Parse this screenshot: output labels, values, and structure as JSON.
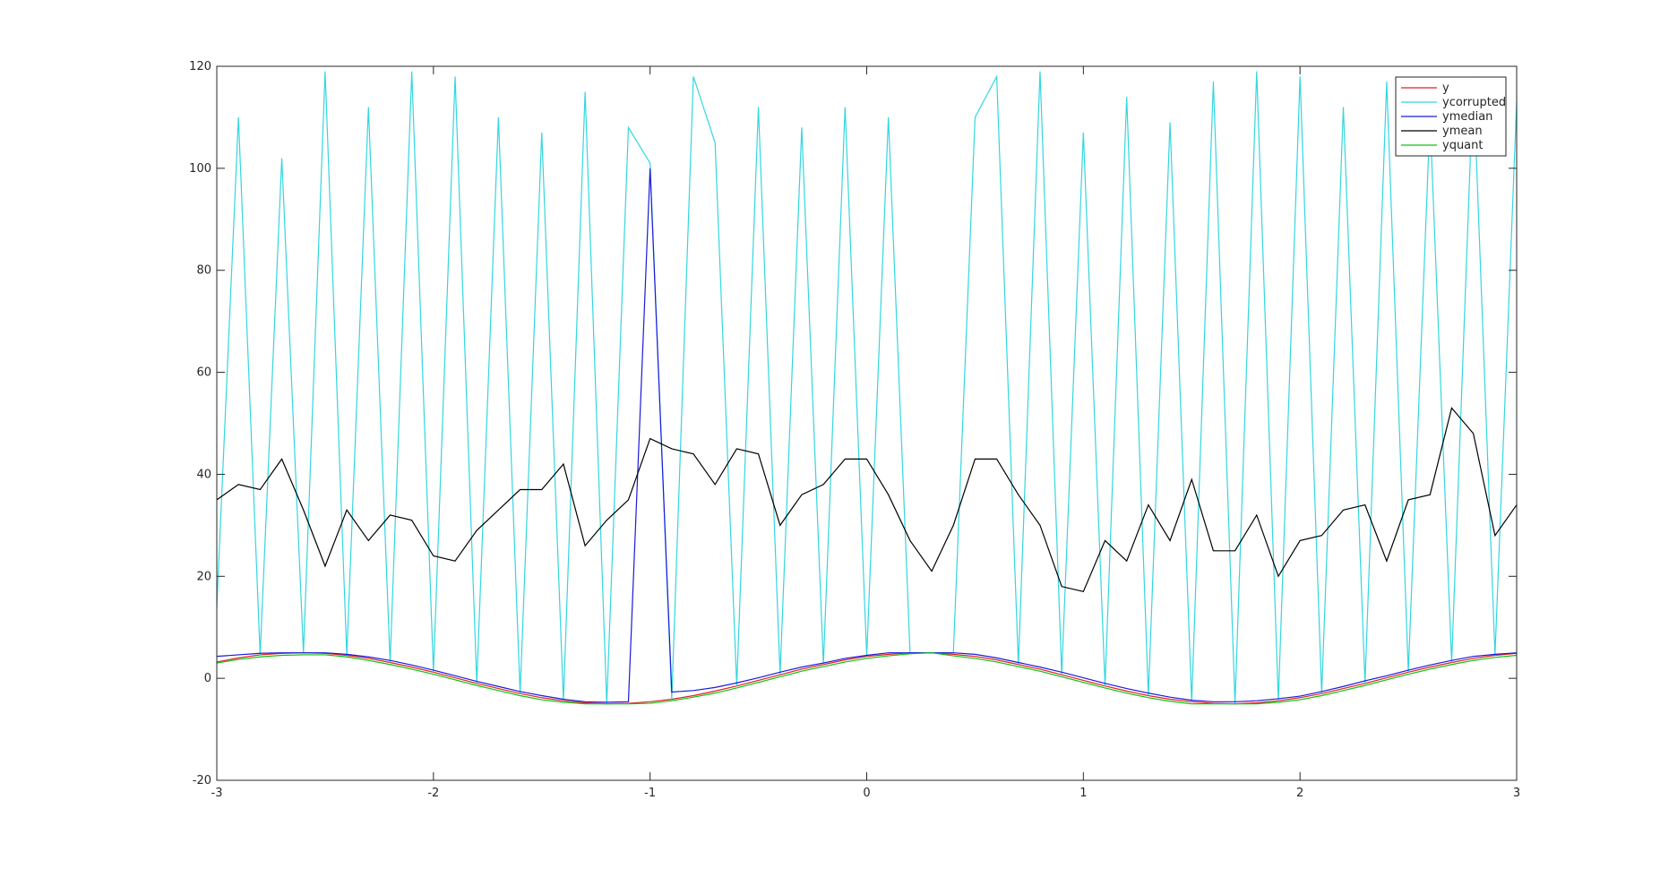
{
  "chart_data": {
    "type": "line",
    "x": [
      -3,
      -2.9,
      -2.8,
      -2.7,
      -2.6,
      -2.5,
      -2.4,
      -2.3,
      -2.2,
      -2.1,
      -2,
      -1.9,
      -1.8,
      -1.7,
      -1.6,
      -1.5,
      -1.4,
      -1.3,
      -1.2,
      -1.1,
      -1,
      -0.9,
      -0.8,
      -0.7,
      -0.6,
      -0.5,
      -0.4,
      -0.3,
      -0.2,
      -0.1,
      0,
      0.1,
      0.2,
      0.3,
      0.4,
      0.5,
      0.6,
      0.7,
      0.8,
      0.9,
      1,
      1.1,
      1.2,
      1.3,
      1.4,
      1.5,
      1.6,
      1.7,
      1.8,
      1.9,
      2,
      2.1,
      2.2,
      2.3,
      2.4,
      2.5,
      2.6,
      2.7,
      2.8,
      2.9,
      3
    ],
    "series": [
      {
        "name": "y",
        "color": "#e02020",
        "values": [
          3.2,
          4.0,
          4.6,
          4.9,
          5.0,
          4.9,
          4.5,
          3.9,
          3.1,
          2.2,
          1.2,
          0.1,
          -1.0,
          -2.0,
          -3.0,
          -3.8,
          -4.4,
          -4.8,
          -5.0,
          -4.9,
          -4.6,
          -4.1,
          -3.4,
          -2.5,
          -1.5,
          -0.4,
          0.7,
          1.8,
          2.7,
          3.6,
          4.3,
          4.7,
          5.0,
          5.0,
          4.7,
          4.3,
          3.6,
          2.7,
          1.8,
          0.7,
          -0.4,
          -1.5,
          -2.5,
          -3.4,
          -4.1,
          -4.6,
          -4.9,
          -5.0,
          -4.8,
          -4.4,
          -3.8,
          -3.0,
          -2.0,
          -1.0,
          0.1,
          1.2,
          2.2,
          3.1,
          3.9,
          4.5,
          4.9
        ]
      },
      {
        "name": "ycorrupted",
        "color": "#33d6e0",
        "values": [
          14,
          110,
          4.6,
          102,
          5,
          119,
          4.5,
          112,
          3.1,
          119,
          1.2,
          118,
          -1,
          110,
          -3,
          107,
          -4.4,
          115,
          -5,
          108,
          101,
          -4.1,
          118,
          105,
          -1.5,
          112,
          0.7,
          108,
          2.7,
          112,
          4.3,
          110,
          5,
          5,
          5,
          110,
          118,
          2.7,
          119,
          0.7,
          107,
          -1.5,
          114,
          -3.4,
          109,
          -4.6,
          117,
          -5,
          119,
          -4.4,
          118,
          -3,
          112,
          -1,
          117,
          1.2,
          110,
          3.1,
          118,
          4.5,
          113
        ]
      },
      {
        "name": "ymedian",
        "color": "#1a1adb",
        "values": [
          4.3,
          4.6,
          4.9,
          5.0,
          5.0,
          5.0,
          4.7,
          4.2,
          3.5,
          2.6,
          1.6,
          0.5,
          -0.6,
          -1.6,
          -2.6,
          -3.4,
          -4.1,
          -4.6,
          -4.7,
          -4.6,
          100,
          -2.7,
          -2.4,
          -1.8,
          -0.9,
          0.1,
          1.2,
          2.2,
          3.0,
          3.9,
          4.5,
          5.0,
          5.0,
          5.0,
          5.0,
          4.7,
          4.0,
          3.1,
          2.2,
          1.2,
          0.1,
          -1.0,
          -2.0,
          -2.9,
          -3.7,
          -4.3,
          -4.6,
          -4.6,
          -4.4,
          -4.0,
          -3.5,
          -2.6,
          -1.6,
          -0.5,
          0.5,
          1.6,
          2.6,
          3.5,
          4.3,
          4.7,
          5.0
        ]
      },
      {
        "name": "ymean",
        "color": "#000000",
        "values": [
          35,
          38,
          37,
          43,
          33,
          22,
          33,
          27,
          32,
          31,
          24,
          23,
          29,
          33,
          37,
          37,
          42,
          26,
          31,
          35,
          47,
          45,
          44,
          38,
          45,
          44,
          30,
          36,
          38,
          43,
          43,
          36,
          27,
          21,
          30,
          43,
          43,
          36,
          30,
          18,
          17,
          27,
          23,
          34,
          27,
          39,
          25,
          25,
          32,
          20,
          27,
          28,
          33,
          34,
          23,
          35,
          36,
          53,
          48,
          28,
          34
        ]
      },
      {
        "name": "yquant",
        "color": "#10c010",
        "values": [
          3.0,
          3.7,
          4.2,
          4.5,
          4.6,
          4.6,
          4.2,
          3.5,
          2.7,
          1.8,
          0.8,
          -0.3,
          -1.4,
          -2.4,
          -3.4,
          -4.2,
          -4.7,
          -5.0,
          -5.0,
          -5.0,
          -4.9,
          -4.4,
          -3.7,
          -2.9,
          -1.9,
          -0.8,
          0.3,
          1.4,
          2.3,
          3.2,
          3.9,
          4.4,
          4.8,
          5.0,
          4.4,
          3.9,
          3.2,
          2.3,
          1.4,
          0.3,
          -0.8,
          -1.9,
          -2.9,
          -3.8,
          -4.5,
          -5.0,
          -5.0,
          -5.0,
          -5.0,
          -4.7,
          -4.2,
          -3.4,
          -2.4,
          -1.4,
          -0.3,
          0.8,
          1.8,
          2.7,
          3.5,
          4.1,
          4.5
        ]
      }
    ],
    "xlim": [
      -3,
      3
    ],
    "xticks": [
      -3,
      -2,
      -1,
      0,
      1,
      2,
      3
    ],
    "ylim": [
      -20,
      120
    ],
    "yticks": [
      -20,
      0,
      20,
      40,
      60,
      80,
      100,
      120
    ],
    "legend": "top-right"
  }
}
